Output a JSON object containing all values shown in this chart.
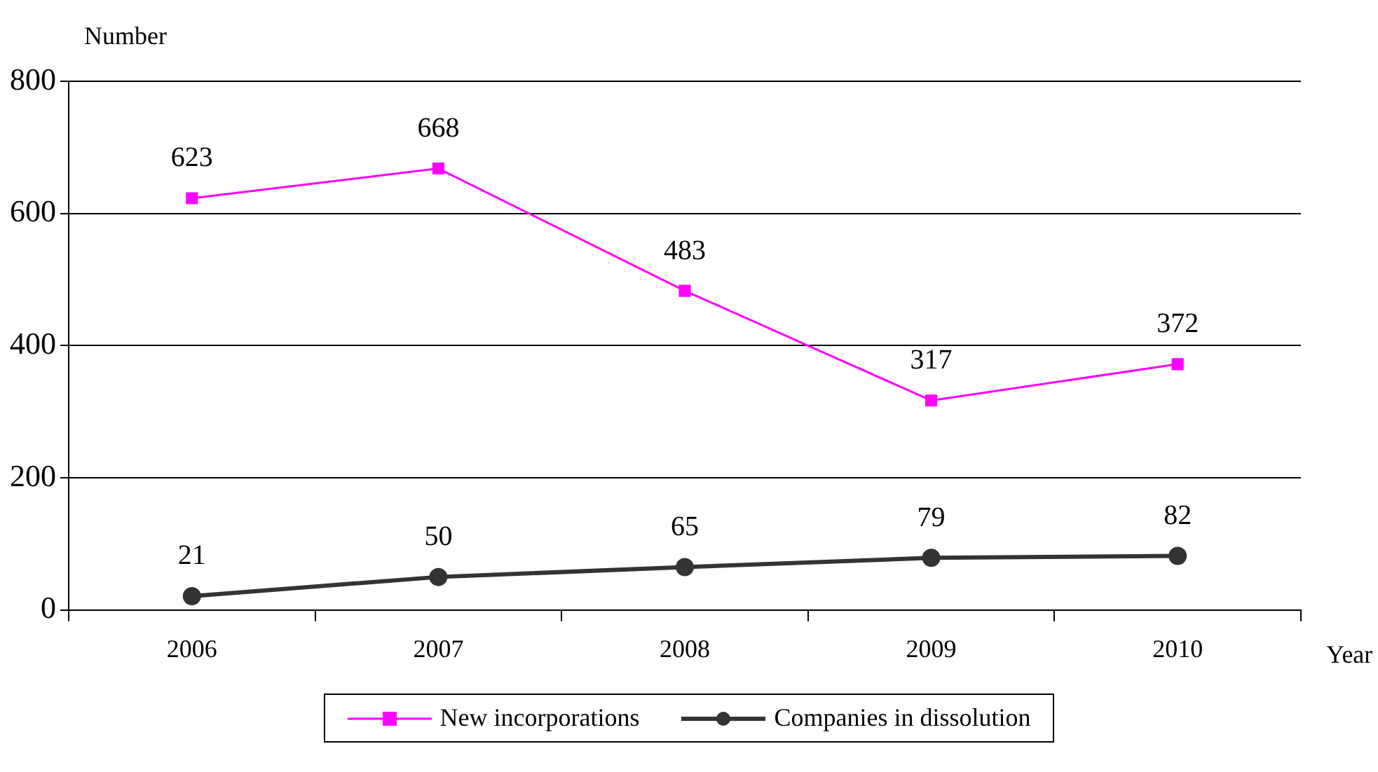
{
  "chart_data": {
    "type": "line",
    "ylabel": "Number",
    "xlabel": "Year",
    "categories": [
      "2006",
      "2007",
      "2008",
      "2009",
      "2010"
    ],
    "series": [
      {
        "name": "New incorporations",
        "color": "#ff00ff",
        "marker": "square",
        "values": [
          623,
          668,
          483,
          317,
          372
        ]
      },
      {
        "name": "Companies in dissolution",
        "color": "#333333",
        "marker": "circle",
        "values": [
          21,
          50,
          65,
          79,
          82
        ]
      }
    ],
    "ylim": [
      0,
      800
    ],
    "yticks": [
      0,
      200,
      400,
      600,
      800
    ],
    "grid": "y",
    "legend": "bottom",
    "data_labels": true,
    "line_style": "solid"
  }
}
